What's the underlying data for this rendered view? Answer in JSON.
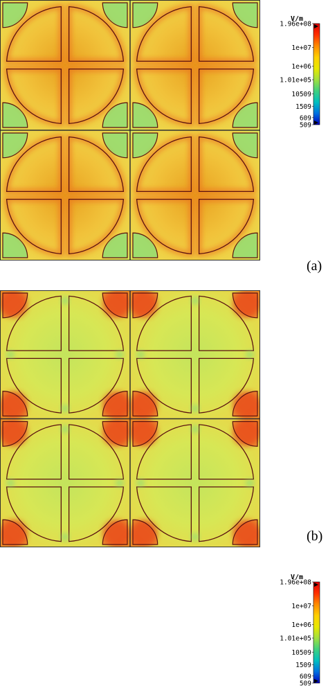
{
  "colors": {
    "field_a": [
      "#e8a020",
      "#f1c23a",
      "#eed64a",
      "#d4e65a"
    ],
    "field_b": [
      "#c4e45c",
      "#d7e755",
      "#e7d849",
      "#ef7a20"
    ],
    "outline": "#5a1010",
    "hot_spot_a": "#eb6d1c",
    "hot_spot_b": "#e94a1a",
    "cool_patch": "#86dd7a"
  },
  "colorbar": {
    "unit": "V/m",
    "ticks": [
      "1.96e+08",
      "1e+07",
      "1e+06",
      "1.01e+05",
      "10509",
      "1509",
      "609",
      "509"
    ],
    "colors": [
      "#e00000",
      "#ff3000",
      "#ff8c00",
      "#ffd000",
      "#e8e800",
      "#a0e040",
      "#40d080",
      "#00c0c0",
      "#0070e0",
      "#0000c0"
    ]
  },
  "panels": [
    {
      "id": "a",
      "label": "(a)"
    },
    {
      "id": "b",
      "label": "(b)"
    }
  ]
}
